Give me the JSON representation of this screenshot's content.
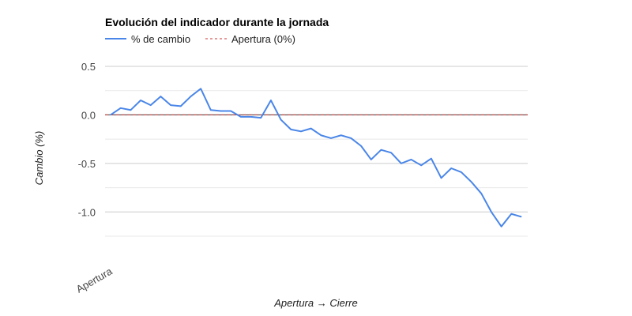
{
  "chart_data": {
    "type": "line",
    "title": "Evolución del indicador durante la jornada",
    "xlabel": "Apertura → Cierre",
    "ylabel": "Cambio (%)",
    "x_tick_labels": [
      "Apertura"
    ],
    "ylim": [
      -1.25,
      0.5
    ],
    "y_ticks": [
      0.5,
      0.0,
      -0.5,
      -1.0
    ],
    "y_tick_labels": [
      "0.5",
      "0.0",
      "-0.5",
      "-1.0"
    ],
    "grid": true,
    "legend_position": "top-left",
    "series": [
      {
        "name": "% de cambio",
        "color": "#4a86e8",
        "values": [
          0.0,
          0.07,
          0.05,
          0.15,
          0.1,
          0.19,
          0.1,
          0.09,
          0.19,
          0.27,
          0.05,
          0.04,
          0.04,
          -0.02,
          -0.02,
          -0.03,
          0.15,
          -0.05,
          -0.15,
          -0.17,
          -0.14,
          -0.21,
          -0.24,
          -0.21,
          -0.24,
          -0.32,
          -0.46,
          -0.36,
          -0.39,
          -0.5,
          -0.46,
          -0.52,
          -0.45,
          -0.65,
          -0.55,
          -0.59,
          -0.69,
          -0.81,
          -1.0,
          -1.15,
          -1.02,
          -1.05
        ]
      },
      {
        "name": "Apertura (0%)",
        "color": "#cc3333",
        "dashed": true,
        "value": 0.0
      }
    ]
  }
}
